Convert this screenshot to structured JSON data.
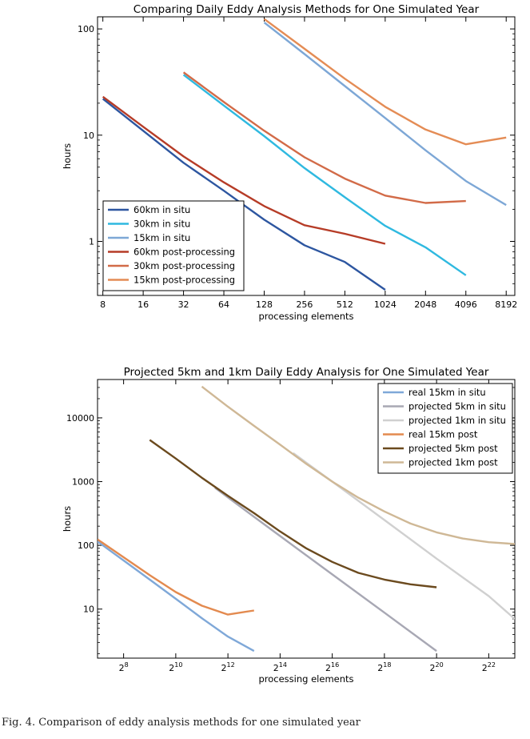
{
  "chart_data": [
    {
      "type": "line",
      "title": "Comparing Daily Eddy Analysis Methods for One Simulated Year",
      "xlabel": "processing elements",
      "ylabel": "hours",
      "x_scale": "log2",
      "y_scale": "log10",
      "xlim": [
        7.3,
        9500
      ],
      "ylim": [
        0.31,
        130
      ],
      "x_ticks": [
        8,
        16,
        32,
        64,
        128,
        256,
        512,
        1024,
        2048,
        4096,
        8192
      ],
      "x_tick_labels": [
        "8",
        "16",
        "32",
        "64",
        "128",
        "256",
        "512",
        "1024",
        "2048",
        "4096",
        "8192"
      ],
      "y_ticks": [
        1,
        10,
        100
      ],
      "y_tick_labels": [
        "1",
        "10",
        "100"
      ],
      "legend_position": "lower-left",
      "series": [
        {
          "name": "60km in situ",
          "color": "#2d56a0",
          "x": [
            8,
            16,
            32,
            64,
            128,
            256,
            512,
            1024
          ],
          "y": [
            22,
            11,
            5.5,
            3.0,
            1.6,
            0.92,
            0.64,
            0.35
          ]
        },
        {
          "name": "30km in situ",
          "color": "#2fb9e0",
          "x": [
            32,
            64,
            128,
            256,
            512,
            1024,
            2048,
            4096
          ],
          "y": [
            37,
            19,
            9.8,
            4.9,
            2.6,
            1.4,
            0.88,
            0.48
          ]
        },
        {
          "name": "15km in situ",
          "color": "#7da7d6",
          "x": [
            128,
            256,
            512,
            1024,
            2048,
            4096,
            8192
          ],
          "y": [
            115,
            58,
            29,
            14.5,
            7.2,
            3.7,
            2.2
          ]
        },
        {
          "name": "60km post-processing",
          "color": "#b63c27",
          "x": [
            8,
            16,
            32,
            64,
            128,
            256,
            512,
            1024
          ],
          "y": [
            23,
            12,
            6.3,
            3.6,
            2.15,
            1.42,
            1.18,
            0.95
          ]
        },
        {
          "name": "30km post-processing",
          "color": "#d26b48",
          "x": [
            32,
            64,
            128,
            256,
            512,
            1024,
            2048,
            4096
          ],
          "y": [
            39,
            20.5,
            11,
            6.2,
            3.9,
            2.7,
            2.3,
            2.4
          ]
        },
        {
          "name": "15km post-processing",
          "color": "#e48c55",
          "x": [
            128,
            256,
            512,
            1024,
            2048,
            4096,
            8192
          ],
          "y": [
            124,
            65,
            34,
            18.5,
            11.3,
            8.2,
            9.5
          ]
        }
      ]
    },
    {
      "type": "line",
      "title": "Projected 5km and 1km Daily Eddy Analysis for One Simulated Year",
      "xlabel": "processing elements",
      "ylabel": "hours",
      "x_scale": "log2",
      "y_scale": "log10",
      "xlim": [
        7,
        23
      ],
      "ylim": [
        1.7,
        40000
      ],
      "x_ticks": [
        8,
        10,
        12,
        14,
        16,
        18,
        20,
        22
      ],
      "x_tick_labels": [
        "2^8",
        "2^10",
        "2^12",
        "2^14",
        "2^16",
        "2^18",
        "2^20",
        "2^22"
      ],
      "y_ticks": [
        10,
        100,
        1000,
        10000
      ],
      "y_tick_labels": [
        "10",
        "100",
        "1000",
        "10000"
      ],
      "legend_position": "top-right",
      "series": [
        {
          "name": "real 15km in situ",
          "color": "#7fa8d8",
          "x": [
            7,
            8,
            9,
            10,
            11,
            12,
            13
          ],
          "y": [
            115,
            58,
            29,
            14.5,
            7.2,
            3.7,
            2.2
          ]
        },
        {
          "name": "projected 5km in situ",
          "color": "#a8a8b4",
          "x": [
            11.5,
            13,
            14,
            16,
            18,
            20
          ],
          "y": [
            800,
            280,
            140,
            35,
            8.8,
            2.2
          ]
        },
        {
          "name": "projected 1km in situ",
          "color": "#d0d0d0",
          "x": [
            14.5,
            16,
            18,
            20,
            22,
            23
          ],
          "y": [
            2800,
            1000,
            250,
            62,
            16,
            7
          ]
        },
        {
          "name": "real 15km post",
          "color": "#e38a4f",
          "x": [
            7,
            8,
            9,
            10,
            11,
            12,
            13
          ],
          "y": [
            124,
            65,
            34,
            18.5,
            11.3,
            8.2,
            9.5
          ]
        },
        {
          "name": "projected 5km post",
          "color": "#6b4a1e",
          "x": [
            9,
            10,
            11,
            12,
            13,
            14,
            15,
            16,
            17,
            18,
            19,
            20
          ],
          "y": [
            4500,
            2300,
            1150,
            600,
            320,
            165,
            90,
            55,
            37,
            29,
            24.5,
            22
          ]
        },
        {
          "name": "projected 1km post",
          "color": "#cfb896",
          "x": [
            11,
            12,
            13,
            14,
            15,
            16,
            17,
            18,
            19,
            20,
            21,
            22,
            23
          ],
          "y": [
            31000,
            15000,
            7500,
            3800,
            1900,
            1000,
            560,
            340,
            220,
            160,
            128,
            112,
            105
          ]
        }
      ]
    }
  ],
  "caption": "Fig. 4. Comparison of eddy analysis methods for one simulated year"
}
